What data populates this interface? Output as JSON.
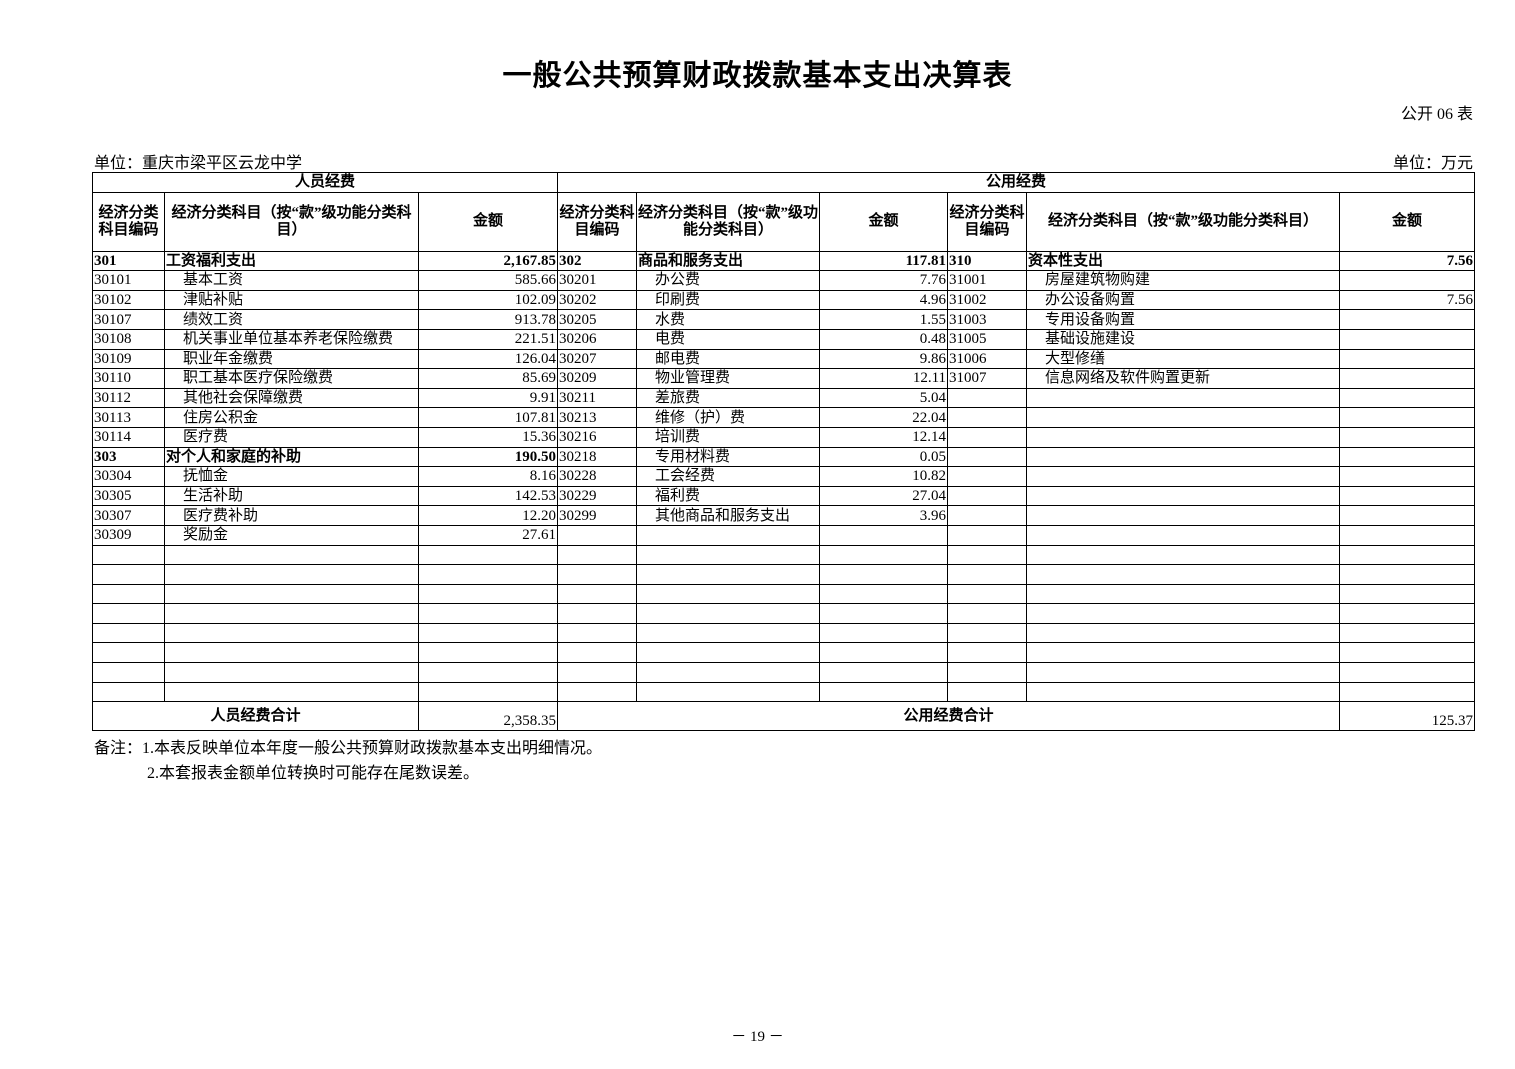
{
  "title": "一般公共预算财政拨款基本支出决算表",
  "form_no": "公开 06 表",
  "unit_left": "单位：重庆市梁平区云龙中学",
  "unit_right": "单位：万元",
  "headers": {
    "group_personnel": "人员经费",
    "group_public": "公用经费",
    "code": "经济分类科目编码",
    "name_short": "经济分类科目（按“款”级功能分类科目）",
    "amount": "金额"
  },
  "personnel_rows": [
    {
      "code": "301",
      "name": "工资福利支出",
      "amount": "2,167.85"
    },
    {
      "code": "30101",
      "name": "基本工资",
      "amount": "585.66"
    },
    {
      "code": "30102",
      "name": "津贴补贴",
      "amount": "102.09"
    },
    {
      "code": "30107",
      "name": "绩效工资",
      "amount": "913.78"
    },
    {
      "code": "30108",
      "name": "机关事业单位基本养老保险缴费",
      "amount": "221.51"
    },
    {
      "code": "30109",
      "name": "职业年金缴费",
      "amount": "126.04"
    },
    {
      "code": "30110",
      "name": "职工基本医疗保险缴费",
      "amount": "85.69"
    },
    {
      "code": "30112",
      "name": "其他社会保障缴费",
      "amount": "9.91"
    },
    {
      "code": "30113",
      "name": "住房公积金",
      "amount": "107.81"
    },
    {
      "code": "30114",
      "name": "医疗费",
      "amount": "15.36"
    },
    {
      "code": "303",
      "name": "对个人和家庭的补助",
      "amount": "190.50"
    },
    {
      "code": "30304",
      "name": "抚恤金",
      "amount": "8.16"
    },
    {
      "code": "30305",
      "name": "生活补助",
      "amount": "142.53"
    },
    {
      "code": "30307",
      "name": "医疗费补助",
      "amount": "12.20"
    },
    {
      "code": "30309",
      "name": "奖励金",
      "amount": "27.61"
    }
  ],
  "goods_rows": [
    {
      "code": "302",
      "name": "商品和服务支出",
      "amount": "117.81"
    },
    {
      "code": "30201",
      "name": "办公费",
      "amount": "7.76"
    },
    {
      "code": "30202",
      "name": "印刷费",
      "amount": "4.96"
    },
    {
      "code": "30205",
      "name": "水费",
      "amount": "1.55"
    },
    {
      "code": "30206",
      "name": "电费",
      "amount": "0.48"
    },
    {
      "code": "30207",
      "name": "邮电费",
      "amount": "9.86"
    },
    {
      "code": "30209",
      "name": "物业管理费",
      "amount": "12.11"
    },
    {
      "code": "30211",
      "name": "差旅费",
      "amount": "5.04"
    },
    {
      "code": "30213",
      "name": "维修（护）费",
      "amount": "22.04"
    },
    {
      "code": "30216",
      "name": "培训费",
      "amount": "12.14"
    },
    {
      "code": "30218",
      "name": "专用材料费",
      "amount": "0.05"
    },
    {
      "code": "30228",
      "name": "工会经费",
      "amount": "10.82"
    },
    {
      "code": "30229",
      "name": "福利费",
      "amount": "27.04"
    },
    {
      "code": "30299",
      "name": "其他商品和服务支出",
      "amount": "3.96"
    }
  ],
  "capital_rows": [
    {
      "code": "310",
      "name": "资本性支出",
      "amount": "7.56"
    },
    {
      "code": "31001",
      "name": "房屋建筑物购建",
      "amount": ""
    },
    {
      "code": "31002",
      "name": "办公设备购置",
      "amount": "7.56"
    },
    {
      "code": "31003",
      "name": "专用设备购置",
      "amount": ""
    },
    {
      "code": "31005",
      "name": "基础设施建设",
      "amount": ""
    },
    {
      "code": "31006",
      "name": "大型修缮",
      "amount": ""
    },
    {
      "code": "31007",
      "name": "信息网络及软件购置更新",
      "amount": ""
    }
  ],
  "totals": {
    "personnel_label": "人员经费合计",
    "personnel_amount": "2,358.35",
    "public_label": "公用经费合计",
    "public_amount": "125.37"
  },
  "notes": [
    "备注：1.本表反映单位本年度一般公共预算财政拨款基本支出明细情况。",
    "2.本套报表金额单位转换时可能存在尾数误差。"
  ],
  "page_number": "－ 19 －"
}
